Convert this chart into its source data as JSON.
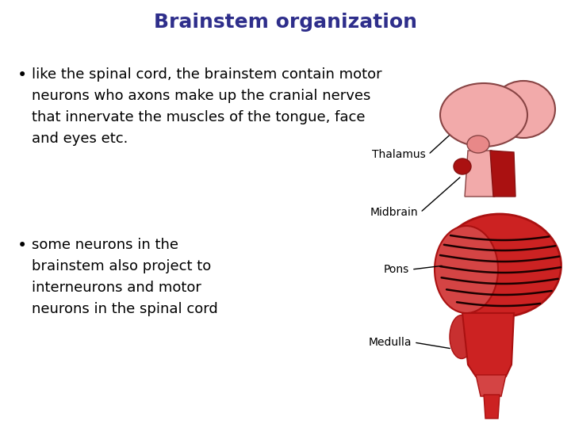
{
  "title": "Brainstem organization",
  "title_color": "#2E2E8B",
  "title_fontsize": 18,
  "title_bold": true,
  "bullet1_lines": [
    "like the spinal cord, the brainstem contain motor",
    "neurons who axons make up the cranial nerves",
    "that innervate the muscles of the tongue, face",
    "and eyes etc."
  ],
  "bullet2_lines": [
    "some neurons in the",
    "brainstem also project to",
    "interneurons and motor",
    "neurons in the spinal cord"
  ],
  "bullet_fontsize": 13,
  "text_color": "#000000",
  "bg_color": "#ffffff",
  "label_fontsize": 10,
  "pink_light": "#F2AAAA",
  "pink_mid": "#E88888",
  "red_main": "#CC2222",
  "red_dark": "#AA1111",
  "red_deep": "#881111",
  "black_line": "#1A0000"
}
